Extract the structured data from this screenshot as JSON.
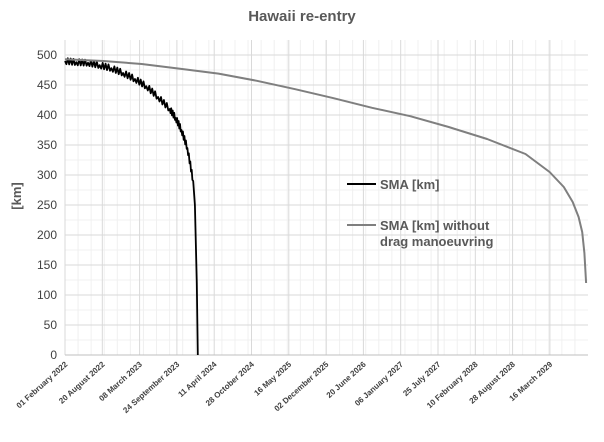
{
  "chart_data": {
    "type": "line",
    "title": "Hawaii re-entry",
    "ylabel": "[km]",
    "xlabel": "",
    "ylim": [
      0,
      525
    ],
    "y_ticks": [
      0,
      50,
      100,
      150,
      200,
      250,
      300,
      350,
      400,
      450,
      500
    ],
    "x_range": [
      "2022-02-01",
      "2029-07-20"
    ],
    "x_tick_labels": [
      "01 February 2022",
      "20 August 2022",
      "08 March 2023",
      "24 September 2023",
      "11 April 2024",
      "28 October 2024",
      "16 May 2025",
      "02 December 2025",
      "20 June 2026",
      "06 January 2027",
      "25 July 2027",
      "10 February 2028",
      "28 August 2028",
      "16 March 2029"
    ],
    "grid": "major and minor",
    "legend_position": "right-middle",
    "series": [
      {
        "name": "SMA [km]",
        "color": "#000000",
        "x": [
          "2022-02-01",
          "2022-04-01",
          "2022-06-01",
          "2022-08-01",
          "2022-10-01",
          "2022-12-01",
          "2023-02-01",
          "2023-04-01",
          "2023-06-01",
          "2023-08-01",
          "2023-09-01",
          "2023-10-01",
          "2023-11-01",
          "2023-12-01",
          "2023-12-10",
          "2023-12-20",
          "2023-12-25"
        ],
        "y": [
          490,
          488,
          487,
          483,
          478,
          470,
          460,
          448,
          430,
          410,
          395,
          375,
          345,
          290,
          250,
          120,
          0
        ]
      },
      {
        "name": "SMA [km] without drag manoeuvring",
        "color": "#7f7f7f",
        "x": [
          "2022-02-01",
          "2022-08-20",
          "2023-03-08",
          "2023-09-24",
          "2024-04-11",
          "2024-10-28",
          "2025-05-16",
          "2025-12-02",
          "2026-06-20",
          "2027-01-06",
          "2027-07-25",
          "2028-02-10",
          "2028-08-28",
          "2029-01-01",
          "2029-03-16",
          "2029-05-01",
          "2029-06-01",
          "2029-06-20",
          "2029-07-01",
          "2029-07-10"
        ],
        "y": [
          493,
          490,
          485,
          477,
          469,
          457,
          443,
          428,
          412,
          398,
          380,
          360,
          335,
          305,
          280,
          255,
          230,
          205,
          170,
          120
        ]
      }
    ]
  }
}
